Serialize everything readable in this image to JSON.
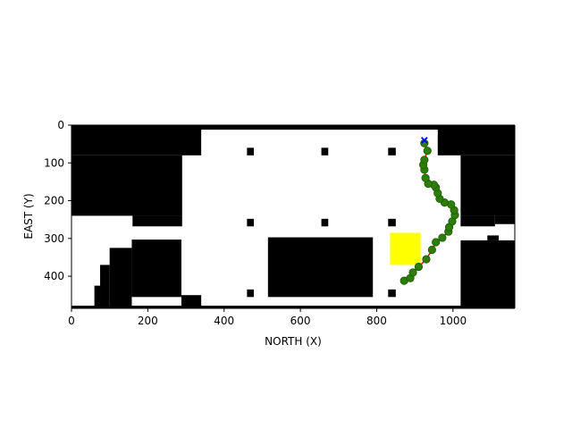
{
  "chart_data": {
    "type": "scatter",
    "title": "",
    "xlabel": "NORTH (X)",
    "ylabel": "EAST (Y)",
    "xlim": [
      0,
      1162
    ],
    "ylim": [
      485,
      0
    ],
    "y_axis_inverted": true,
    "grid": false,
    "legend": "none",
    "x_ticks": [
      0,
      200,
      400,
      600,
      800,
      1000
    ],
    "y_ticks": [
      0,
      100,
      200,
      300,
      400
    ],
    "colors": {
      "obstacle": "#000000",
      "free_space": "#ffffff",
      "goal_region": "#ffff00",
      "path_line": "#ff0000",
      "path_points": "#2e7d0b",
      "path_points_edge": "#1a5c00",
      "start_marker": "#0000ff"
    },
    "obstacles": [
      [
        0,
        0,
        340,
        80
      ],
      [
        0,
        80,
        290,
        240
      ],
      [
        160,
        240,
        290,
        268
      ],
      [
        0,
        0,
        1162,
        12
      ],
      [
        960,
        0,
        1162,
        80
      ],
      [
        1020,
        80,
        1162,
        240
      ],
      [
        1110,
        240,
        1162,
        262
      ],
      [
        1020,
        240,
        1110,
        268
      ],
      [
        460,
        60,
        478,
        80
      ],
      [
        655,
        60,
        673,
        80
      ],
      [
        830,
        60,
        850,
        80
      ],
      [
        460,
        248,
        478,
        268
      ],
      [
        655,
        248,
        673,
        268
      ],
      [
        830,
        248,
        850,
        268
      ],
      [
        515,
        297,
        790,
        455
      ],
      [
        158,
        303,
        288,
        455
      ],
      [
        100,
        325,
        158,
        485
      ],
      [
        75,
        370,
        100,
        485
      ],
      [
        60,
        425,
        75,
        485
      ],
      [
        288,
        450,
        340,
        485
      ],
      [
        1020,
        305,
        1162,
        485
      ],
      [
        1090,
        292,
        1120,
        305
      ],
      [
        1120,
        330,
        1162,
        485
      ],
      [
        460,
        435,
        478,
        455
      ],
      [
        830,
        435,
        850,
        455
      ],
      [
        0,
        478,
        1162,
        485
      ]
    ],
    "goal_region": [
      835,
      285,
      915,
      370
    ],
    "start": [
      925,
      40
    ],
    "path": [
      [
        872,
        412
      ],
      [
        888,
        405
      ],
      [
        895,
        390
      ],
      [
        910,
        375
      ],
      [
        930,
        355
      ],
      [
        945,
        330
      ],
      [
        955,
        310
      ],
      [
        972,
        298
      ],
      [
        988,
        282
      ],
      [
        990,
        270
      ],
      [
        998,
        255
      ],
      [
        1005,
        238
      ],
      [
        1003,
        225
      ],
      [
        995,
        210
      ],
      [
        978,
        205
      ],
      [
        965,
        195
      ],
      [
        960,
        180
      ],
      [
        955,
        165
      ],
      [
        950,
        158
      ],
      [
        935,
        155
      ],
      [
        928,
        140
      ],
      [
        925,
        118
      ],
      [
        922,
        105
      ],
      [
        925,
        92
      ],
      [
        933,
        68
      ],
      [
        925,
        48
      ]
    ]
  }
}
